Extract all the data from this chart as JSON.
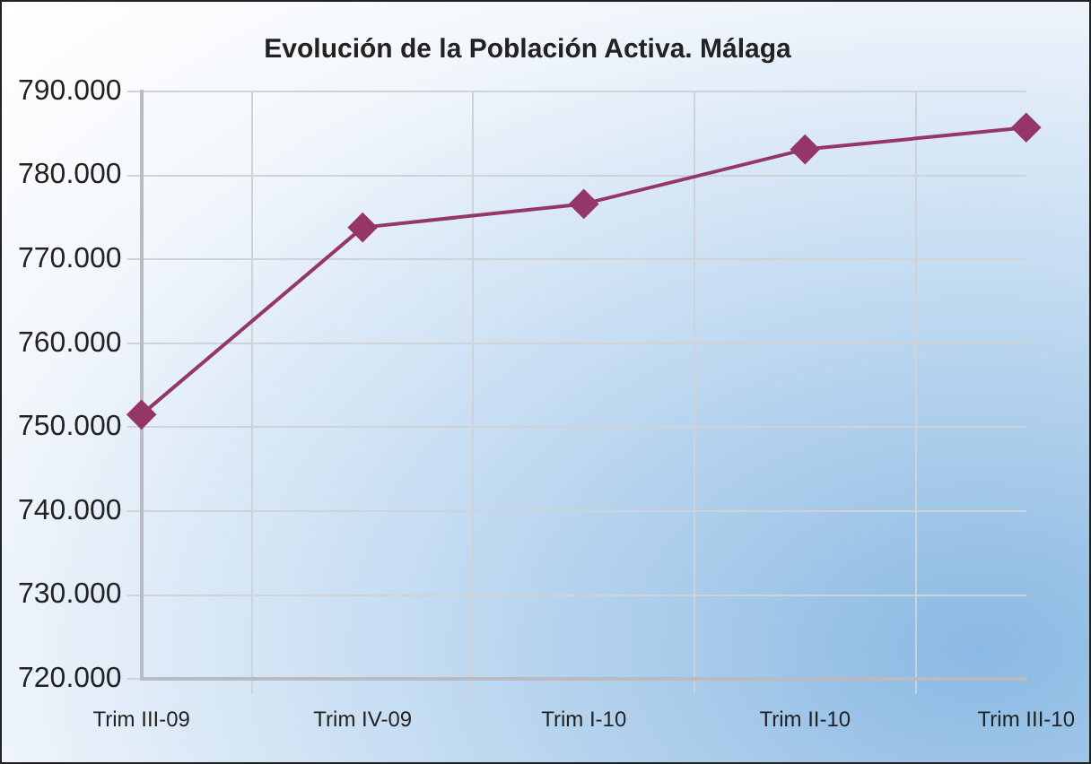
{
  "chart_data": {
    "type": "line",
    "title": "Evolución de la Población Activa. Málaga",
    "categories": [
      "Trim III-09",
      "Trim IV-09",
      "Trim I-10",
      "Trim II-10",
      "Trim III-10"
    ],
    "series": [
      {
        "color": "#943768",
        "values": [
          751500,
          773800,
          776600,
          783100,
          785700
        ]
      }
    ],
    "ylim": [
      720000,
      790000
    ],
    "yticks": [
      {
        "value": 720000,
        "label": "720.000"
      },
      {
        "value": 730000,
        "label": "730.000"
      },
      {
        "value": 740000,
        "label": "740.000"
      },
      {
        "value": 750000,
        "label": "750.000"
      },
      {
        "value": 760000,
        "label": "760.000"
      },
      {
        "value": 770000,
        "label": "770.000"
      },
      {
        "value": 780000,
        "label": "780.000"
      },
      {
        "value": 790000,
        "label": "790.000"
      }
    ],
    "grid": true,
    "marker": "diamond",
    "legend": false
  }
}
